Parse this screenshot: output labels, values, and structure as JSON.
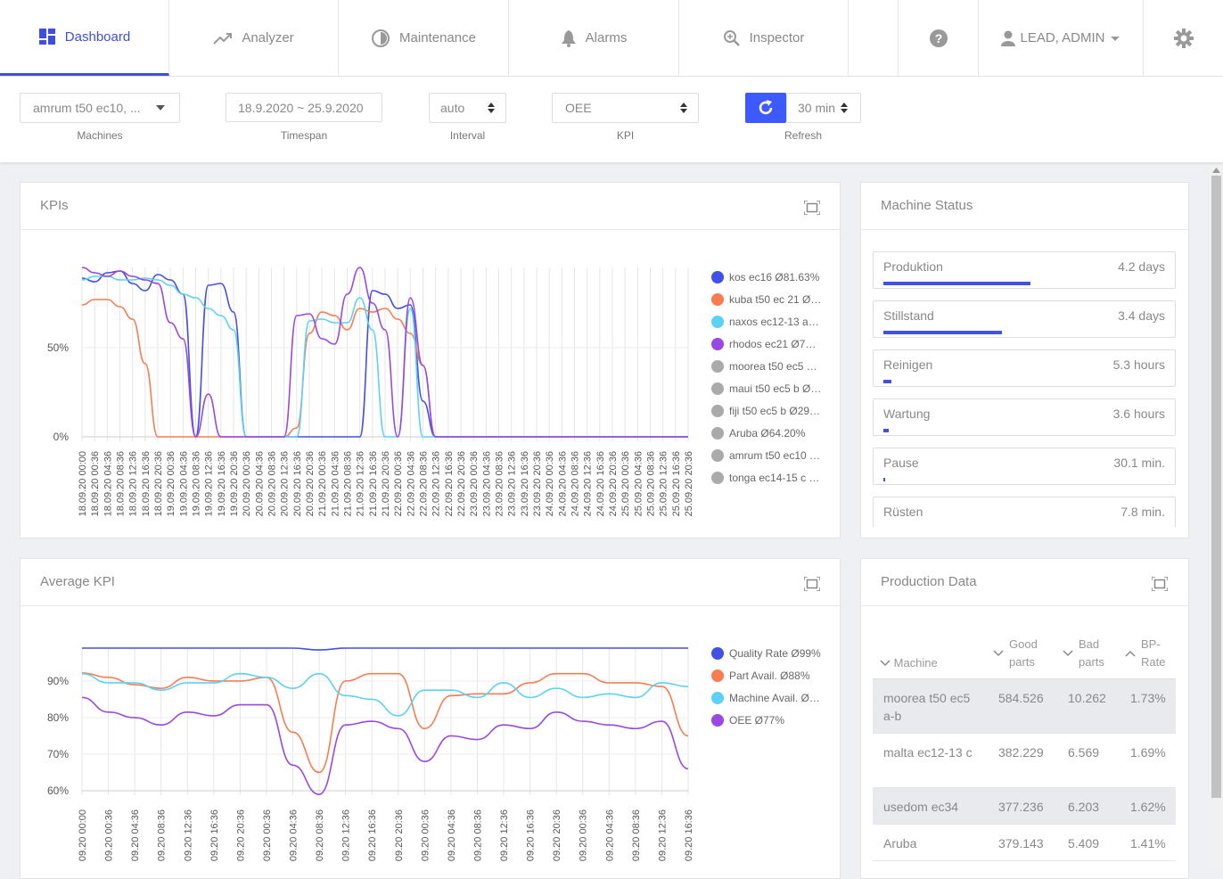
{
  "nav": {
    "items": [
      "Dashboard",
      "Analyzer",
      "Maintenance",
      "Alarms",
      "Inspector"
    ],
    "active": 0,
    "user": "LEAD, ADMIN"
  },
  "filters": [
    {
      "value": "amrum t50 ec10, ...",
      "label": "Machines"
    },
    {
      "value": "18.9.2020 ~ 25.9.2020",
      "label": "Timespan"
    },
    {
      "value": "auto",
      "label": "Interval"
    },
    {
      "value": "OEE",
      "label": "KPI"
    },
    {
      "value": "30 min",
      "label": "Refresh"
    }
  ],
  "panels": {
    "kpis": "KPIs",
    "status": "Machine Status",
    "average": "Average KPI",
    "production": "Production Data"
  },
  "chart_data": [
    {
      "type": "line",
      "categories": [
        "18.09.20 00:00",
        "18.09.20 00:36",
        "18.09.20 04:36",
        "18.09.20 08:36",
        "18.09.20 12:36",
        "18.09.20 16:36",
        "18.09.20 20:36",
        "19.09.20 00:36",
        "19.09.20 04:36",
        "19.09.20 08:36",
        "19.09.20 12:36",
        "19.09.20 16:36",
        "19.09.20 20:36",
        "20.09.20 00:36",
        "20.09.20 04:36",
        "20.09.20 08:36",
        "20.09.20 12:36",
        "20.09.20 16:36",
        "20.09.20 20:36",
        "21.09.20 00:36",
        "21.09.20 04:36",
        "21.09.20 08:36",
        "21.09.20 12:36",
        "21.09.20 16:36",
        "21.09.20 20:36",
        "22.09.20 00:36",
        "22.09.20 04:36",
        "22.09.20 08:36",
        "22.09.20 12:36",
        "22.09.20 16:36",
        "22.09.20 20:36",
        "23.09.20 00:36",
        "23.09.20 04:36",
        "23.09.20 08:36",
        "23.09.20 12:36",
        "23.09.20 16:36",
        "23.09.20 20:36",
        "24.09.20 00:36",
        "24.09.20 04:36",
        "24.09.20 08:36",
        "24.09.20 12:36",
        "24.09.20 16:36",
        "24.09.20 20:36",
        "25.09.20 00:36",
        "25.09.20 04:36",
        "25.09.20 08:36",
        "25.09.20 12:36",
        "25.09.20 16:36",
        "25.09.20 20:36"
      ],
      "series": [
        {
          "name": "kos ec16 Ø81.63%",
          "color": "#4150e6",
          "values": [
            89,
            87,
            92,
            93,
            86,
            82,
            91,
            88,
            80,
            0,
            85,
            86,
            70,
            0,
            0,
            0,
            0,
            0,
            0,
            0,
            0,
            0,
            0,
            82,
            80,
            72,
            74,
            20,
            0,
            0,
            0,
            0,
            0,
            0,
            0,
            0,
            0,
            0,
            0,
            0,
            0,
            0,
            0,
            0,
            0,
            0,
            0,
            0,
            0
          ]
        },
        {
          "name": "kuba t50 ec 21 Ø…",
          "color": "#f77c51",
          "values": [
            74,
            77,
            77,
            73,
            66,
            41,
            0,
            0,
            0,
            0,
            0,
            0,
            0,
            0,
            0,
            0,
            0,
            5,
            58,
            70,
            68,
            60,
            72,
            70,
            72,
            66,
            58,
            40,
            0,
            0,
            0,
            0,
            0,
            0,
            0,
            0,
            0,
            0,
            0,
            0,
            0,
            0,
            0,
            0,
            0,
            0,
            0,
            0,
            0
          ]
        },
        {
          "name": "naxos ec12-13 a…",
          "color": "#5bd2f3",
          "values": [
            88,
            90,
            90,
            88,
            88,
            89,
            88,
            85,
            80,
            78,
            72,
            68,
            60,
            0,
            0,
            0,
            0,
            0,
            65,
            66,
            64,
            64,
            78,
            60,
            0,
            0,
            72,
            0,
            0,
            0,
            0,
            0,
            0,
            0,
            0,
            0,
            0,
            0,
            0,
            0,
            0,
            0,
            0,
            0,
            0,
            0,
            0,
            0,
            0
          ]
        },
        {
          "name": "rhodos ec21 Ø7…",
          "color": "#9a47e3",
          "values": [
            95,
            92,
            90,
            93,
            90,
            88,
            86,
            64,
            55,
            0,
            24,
            0,
            0,
            0,
            0,
            0,
            0,
            68,
            69,
            55,
            52,
            80,
            95,
            75,
            60,
            0,
            78,
            40,
            0,
            0,
            0,
            0,
            0,
            0,
            0,
            0,
            0,
            0,
            0,
            0,
            0,
            0,
            0,
            0,
            0,
            0,
            0,
            0,
            0
          ]
        }
      ],
      "hidden_series": [
        {
          "name": "moorea t50 ec5 …",
          "color": "#aaaaaa"
        },
        {
          "name": "maui t50 ec5 b Ø…",
          "color": "#aaaaaa"
        },
        {
          "name": "fiji t50 ec5 b Ø29…",
          "color": "#aaaaaa"
        },
        {
          "name": "Aruba Ø64.20%",
          "color": "#aaaaaa"
        },
        {
          "name": "amrum t50 ec10 …",
          "color": "#aaaaaa"
        },
        {
          "name": "tonga ec14-15 c …",
          "color": "#aaaaaa"
        }
      ],
      "ylim": [
        0,
        95
      ],
      "yticks": [
        {
          "value": 0,
          "label": "0%"
        },
        {
          "value": 50,
          "label": "50%"
        }
      ],
      "grid": true
    },
    {
      "type": "line",
      "categories": [
        "09.20 00:00",
        "09.20 00:36",
        "09.20 04:36",
        "09.20 08:36",
        "09.20 12:36",
        "09.20 16:36",
        "09.20 20:36",
        "09.20 00:36",
        "09.20 04:36",
        "09.20 08:36",
        "09.20 12:36",
        "09.20 16:36",
        "09.20 20:36",
        "09.20 00:36",
        "09.20 04:36",
        "09.20 08:36",
        "09.20 12:36",
        "09.20 16:36",
        "09.20 20:36",
        "09.20 00:36",
        "09.20 04:36",
        "09.20 08:36",
        "09.20 12:36",
        "09.20 16:36"
      ],
      "series": [
        {
          "name": "Quality Rate Ø99%",
          "color": "#4150e6",
          "values": [
            99,
            99,
            99,
            99,
            99,
            99,
            99,
            99,
            99,
            98.5,
            99,
            99,
            99,
            99,
            99,
            99,
            99,
            99,
            99,
            99,
            99,
            99,
            99,
            99
          ]
        },
        {
          "name": "Part Avail. Ø88%",
          "color": "#f77c51",
          "values": [
            92.2,
            91,
            89,
            88,
            91,
            90,
            90,
            91,
            76,
            65,
            90,
            92,
            92,
            77,
            86,
            86.5,
            86.5,
            89.5,
            92,
            92,
            89.5,
            89.5,
            88.5,
            75
          ]
        },
        {
          "name": "Machine Avail. Ø…",
          "color": "#5bd2f3",
          "values": [
            92,
            89.5,
            89.5,
            87.5,
            89.5,
            89.5,
            92,
            91,
            88,
            92,
            86,
            85,
            80.5,
            87.5,
            87.5,
            85.5,
            89.5,
            85.5,
            88,
            85.5,
            86.5,
            85.5,
            89.5,
            88.5
          ]
        },
        {
          "name": "OEE Ø77%",
          "color": "#9a47e3",
          "values": [
            85.5,
            81.5,
            80,
            78,
            81.5,
            80.5,
            83.5,
            83.5,
            67,
            59,
            78,
            79,
            77,
            68,
            75,
            74,
            78,
            77,
            81.5,
            79,
            78,
            77,
            79,
            66
          ]
        }
      ],
      "ylim": [
        60,
        99
      ],
      "yticks": [
        {
          "value": 60,
          "label": "60%"
        },
        {
          "value": 70,
          "label": "70%"
        },
        {
          "value": 80,
          "label": "80%"
        },
        {
          "value": 90,
          "label": "90%"
        }
      ],
      "grid": true
    }
  ],
  "machine_status": {
    "categories": [
      "Produktion",
      "Stillstand",
      "Reinigen",
      "Wartung",
      "Pause",
      "Rüsten"
    ],
    "values": [
      100.8,
      81.6,
      5.3,
      3.6,
      0.5,
      0.13
    ],
    "value_labels": [
      "4.2 days",
      "3.4 days",
      "5.3 hours",
      "3.6 hours",
      "30.1 min.",
      "7.8 min."
    ],
    "color": "#4150e6"
  },
  "table": {
    "header": [
      "Machine",
      "Good parts",
      "Bad parts",
      "BP-Rate"
    ],
    "rows": [
      [
        "moorea t50 ec5 a-b",
        "584.526",
        "10.262",
        "1.73%"
      ],
      [
        "malta ec12-13 c",
        "382.229",
        "6.569",
        "1.69%"
      ],
      [
        "usedom ec34",
        "377.236",
        "6.203",
        "1.62%"
      ],
      [
        "Aruba",
        "379.143",
        "5.409",
        "1.41%"
      ]
    ]
  }
}
